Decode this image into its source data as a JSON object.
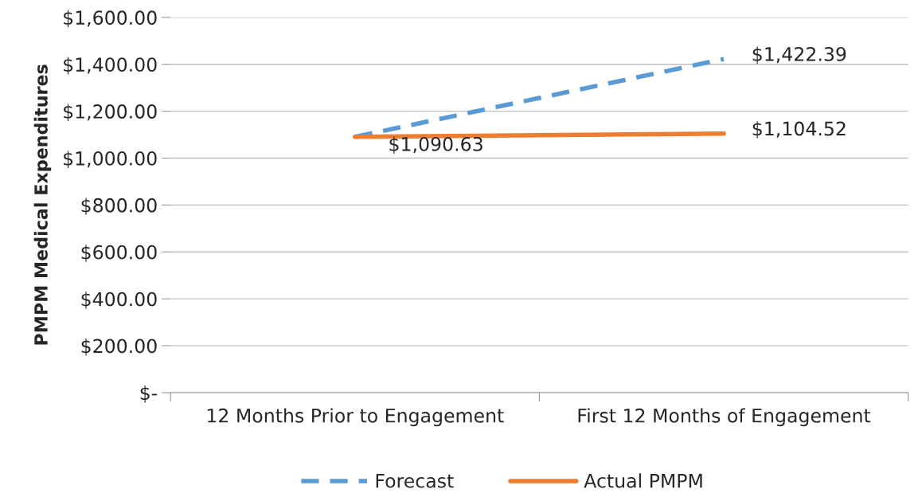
{
  "chart_data": {
    "type": "line",
    "ylabel": "PMPM Medical Expenditures",
    "categories": [
      "12 Months Prior to Engagement",
      "First 12 Months of Engagement"
    ],
    "series": [
      {
        "name": "Forecast",
        "color": "#5b9bd5",
        "line_style": "dashed",
        "values": [
          1090.63,
          1422.39
        ],
        "value_labels": [
          null,
          "$1,422.39"
        ]
      },
      {
        "name": "Actual PMPM",
        "color": "#ed7d31",
        "line_style": "solid",
        "values": [
          1090.63,
          1104.52
        ],
        "value_labels": [
          "$1,090.63",
          "$1,104.52"
        ]
      }
    ],
    "ylim": [
      0,
      1600
    ],
    "yticks": [
      {
        "value": 0,
        "label": "$-"
      },
      {
        "value": 200,
        "label": "$200.00"
      },
      {
        "value": 400,
        "label": "$400.00"
      },
      {
        "value": 600,
        "label": "$600.00"
      },
      {
        "value": 800,
        "label": "$800.00"
      },
      {
        "value": 1000,
        "label": "$1,000.00"
      },
      {
        "value": 1200,
        "label": "$1,200.00"
      },
      {
        "value": 1400,
        "label": "$1,400.00"
      },
      {
        "value": 1600,
        "label": "$1,600.00"
      }
    ],
    "grid": "y",
    "legend": "bottom",
    "marker": "none"
  }
}
